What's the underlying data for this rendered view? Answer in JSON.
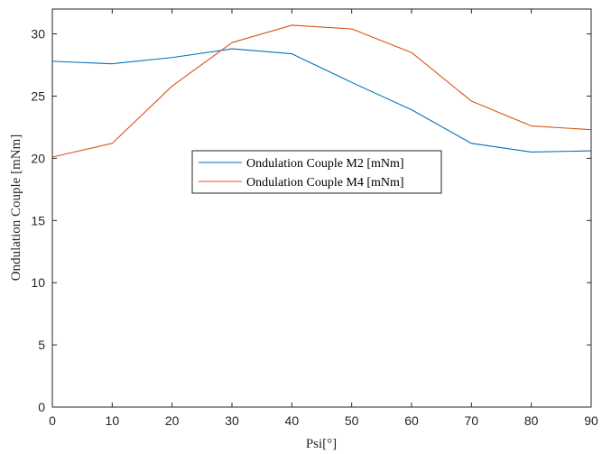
{
  "chart_data": {
    "type": "line",
    "title": "",
    "xlabel": "Psi[°]",
    "ylabel": "Ondulation Couple [mNm]",
    "xlim": [
      0,
      90
    ],
    "ylim": [
      0,
      32
    ],
    "xticks": [
      0,
      10,
      20,
      30,
      40,
      50,
      60,
      70,
      80,
      90
    ],
    "yticks": [
      0,
      5,
      10,
      15,
      20,
      25,
      30
    ],
    "grid": false,
    "legend_position": "center",
    "x": [
      0,
      10,
      20,
      30,
      40,
      50,
      60,
      70,
      80,
      90
    ],
    "series": [
      {
        "name": "Ondulation Couple M2 [mNm]",
        "color": "#0072BD",
        "values": [
          27.8,
          27.6,
          28.1,
          28.8,
          28.4,
          26.1,
          23.9,
          21.2,
          20.5,
          20.6
        ]
      },
      {
        "name": "Ondulation Couple M4 [mNm]",
        "color": "#D95319",
        "values": [
          20.1,
          21.2,
          25.8,
          29.3,
          30.7,
          30.4,
          28.5,
          24.6,
          22.6,
          22.3
        ]
      }
    ]
  }
}
